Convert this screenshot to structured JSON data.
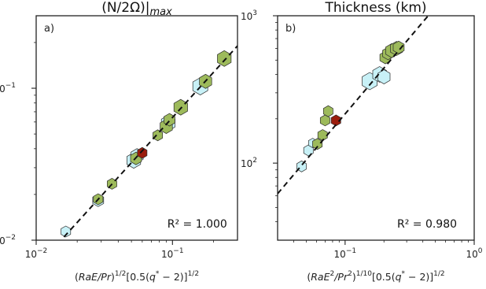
{
  "chart_data": [
    {
      "type": "scatter",
      "panel": "a)",
      "title": "(N/2Ω)|max",
      "xlabel": "(RaE/Pr)^1/2 [0.5(q* − 2)]^1/2",
      "ylabel": "",
      "xscale": "log",
      "yscale": "log",
      "xlim": [
        0.01,
        0.3
      ],
      "ylim": [
        0.01,
        0.3
      ],
      "xticks": [
        {
          "v": 0.01,
          "base": "10",
          "exp": "−2"
        },
        {
          "v": 0.1,
          "base": "10",
          "exp": "−1"
        }
      ],
      "yticks": [
        {
          "v": 0.01,
          "base": "10",
          "exp": "−2"
        },
        {
          "v": 0.1,
          "base": "10",
          "exp": "−1"
        }
      ],
      "annotation": {
        "text": "R² = 1.000"
      },
      "fit_line": {
        "x": [
          0.016,
          0.3
        ],
        "y": [
          0.0105,
          0.19
        ]
      },
      "colors": {
        "cyan": "#c8f1f7",
        "green": "#9dba5b",
        "red": "#9b1c0c",
        "line": "#111111"
      },
      "points": [
        {
          "x": 0.0165,
          "y": 0.0114,
          "color": "cyan",
          "size": 7
        },
        {
          "x": 0.0285,
          "y": 0.0183,
          "color": "cyan",
          "size": 8
        },
        {
          "x": 0.0285,
          "y": 0.0186,
          "color": "green",
          "size": 7
        },
        {
          "x": 0.036,
          "y": 0.0235,
          "color": "green",
          "size": 7
        },
        {
          "x": 0.052,
          "y": 0.0335,
          "color": "cyan",
          "size": 10
        },
        {
          "x": 0.055,
          "y": 0.036,
          "color": "cyan",
          "size": 9
        },
        {
          "x": 0.054,
          "y": 0.0345,
          "color": "green",
          "size": 8
        },
        {
          "x": 0.06,
          "y": 0.0375,
          "color": "red",
          "size": 7
        },
        {
          "x": 0.078,
          "y": 0.049,
          "color": "green",
          "size": 7
        },
        {
          "x": 0.093,
          "y": 0.059,
          "color": "cyan",
          "size": 10
        },
        {
          "x": 0.09,
          "y": 0.056,
          "color": "green",
          "size": 9
        },
        {
          "x": 0.095,
          "y": 0.062,
          "color": "green",
          "size": 8
        },
        {
          "x": 0.115,
          "y": 0.075,
          "color": "green",
          "size": 10
        },
        {
          "x": 0.16,
          "y": 0.103,
          "color": "cyan",
          "size": 11
        },
        {
          "x": 0.175,
          "y": 0.111,
          "color": "green",
          "size": 9
        },
        {
          "x": 0.24,
          "y": 0.157,
          "color": "green",
          "size": 10
        }
      ]
    },
    {
      "type": "scatter",
      "panel": "b)",
      "title": "Thickness (km)",
      "xlabel": "(RaE²/Pr²)^1/10 [0.5(q* − 2)]^1/2",
      "ylabel": "",
      "xscale": "log",
      "yscale": "log",
      "xlim": [
        0.03,
        1.0
      ],
      "ylim": [
        30,
        1000
      ],
      "xticks": [
        {
          "v": 0.1,
          "base": "10",
          "exp": "−1"
        },
        {
          "v": 1.0,
          "base": "10",
          "exp": "0"
        }
      ],
      "yticks": [
        {
          "v": 100,
          "base": "10",
          "exp": "2"
        },
        {
          "v": 1000,
          "base": "10",
          "exp": "3"
        }
      ],
      "annotation": {
        "text": "R² = 0.980"
      },
      "fit_line": {
        "x": [
          0.03,
          0.44
        ],
        "y": [
          62,
          1000
        ]
      },
      "colors": {
        "cyan": "#c8f1f7",
        "green": "#9dba5b",
        "red": "#9b1c0c",
        "line": "#111111"
      },
      "points": [
        {
          "x": 0.046,
          "y": 95,
          "color": "cyan",
          "size": 7
        },
        {
          "x": 0.052,
          "y": 122,
          "color": "cyan",
          "size": 7
        },
        {
          "x": 0.056,
          "y": 137,
          "color": "cyan",
          "size": 6
        },
        {
          "x": 0.061,
          "y": 135,
          "color": "green",
          "size": 7
        },
        {
          "x": 0.067,
          "y": 155,
          "color": "green",
          "size": 7
        },
        {
          "x": 0.07,
          "y": 195,
          "color": "green",
          "size": 7
        },
        {
          "x": 0.074,
          "y": 225,
          "color": "green",
          "size": 7
        },
        {
          "x": 0.085,
          "y": 195,
          "color": "red",
          "size": 7
        },
        {
          "x": 0.155,
          "y": 360,
          "color": "cyan",
          "size": 11
        },
        {
          "x": 0.185,
          "y": 400,
          "color": "cyan",
          "size": 10
        },
        {
          "x": 0.2,
          "y": 385,
          "color": "cyan",
          "size": 9
        },
        {
          "x": 0.205,
          "y": 520,
          "color": "green",
          "size": 8
        },
        {
          "x": 0.215,
          "y": 555,
          "color": "green",
          "size": 8
        },
        {
          "x": 0.23,
          "y": 580,
          "color": "green",
          "size": 9
        },
        {
          "x": 0.25,
          "y": 600,
          "color": "green",
          "size": 9
        },
        {
          "x": 0.26,
          "y": 610,
          "color": "green",
          "size": 8
        }
      ]
    }
  ]
}
